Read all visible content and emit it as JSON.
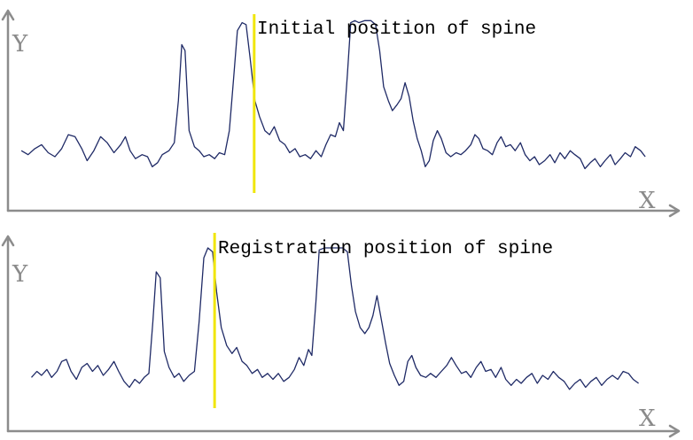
{
  "chart_data": [
    {
      "type": "line",
      "title": "",
      "xlabel": "X",
      "ylabel": "Y",
      "grid": false,
      "xlim": [
        0,
        100
      ],
      "ylim": [
        0,
        1
      ],
      "annotation": {
        "text": "Initial position of spine",
        "marker_x": 36.7,
        "color": "#f0e60a"
      },
      "series": [
        {
          "color": "#1f2a66",
          "points": [
            [
              2.0,
              0.3
            ],
            [
              3.0,
              0.28
            ],
            [
              4.0,
              0.31
            ],
            [
              5.0,
              0.33
            ],
            [
              6.0,
              0.29
            ],
            [
              7.0,
              0.27
            ],
            [
              8.0,
              0.31
            ],
            [
              9.0,
              0.38
            ],
            [
              10.0,
              0.37
            ],
            [
              11.0,
              0.31
            ],
            [
              11.8,
              0.25
            ],
            [
              12.8,
              0.3
            ],
            [
              13.8,
              0.37
            ],
            [
              14.8,
              0.34
            ],
            [
              15.8,
              0.29
            ],
            [
              16.8,
              0.33
            ],
            [
              17.5,
              0.37
            ],
            [
              18.2,
              0.3
            ],
            [
              19.0,
              0.26
            ],
            [
              20.0,
              0.28
            ],
            [
              20.8,
              0.27
            ],
            [
              21.5,
              0.22
            ],
            [
              22.3,
              0.24
            ],
            [
              23.0,
              0.28
            ],
            [
              24.0,
              0.3
            ],
            [
              24.8,
              0.34
            ],
            [
              25.4,
              0.55
            ],
            [
              25.9,
              0.83
            ],
            [
              26.4,
              0.8
            ],
            [
              27.0,
              0.4
            ],
            [
              27.8,
              0.32
            ],
            [
              28.5,
              0.3
            ],
            [
              29.2,
              0.27
            ],
            [
              30.0,
              0.28
            ],
            [
              30.8,
              0.26
            ],
            [
              31.5,
              0.29
            ],
            [
              32.3,
              0.28
            ],
            [
              33.0,
              0.4
            ],
            [
              33.6,
              0.65
            ],
            [
              34.2,
              0.9
            ],
            [
              34.9,
              0.94
            ],
            [
              35.5,
              0.93
            ],
            [
              36.1,
              0.76
            ],
            [
              36.8,
              0.55
            ],
            [
              37.5,
              0.47
            ],
            [
              38.3,
              0.4
            ],
            [
              39.0,
              0.38
            ],
            [
              39.7,
              0.42
            ],
            [
              40.5,
              0.35
            ],
            [
              41.3,
              0.33
            ],
            [
              42.0,
              0.29
            ],
            [
              42.8,
              0.31
            ],
            [
              43.5,
              0.27
            ],
            [
              44.3,
              0.28
            ],
            [
              45.1,
              0.26
            ],
            [
              45.9,
              0.3
            ],
            [
              46.7,
              0.27
            ],
            [
              47.4,
              0.33
            ],
            [
              48.1,
              0.38
            ],
            [
              48.8,
              0.37
            ],
            [
              49.4,
              0.44
            ],
            [
              50.0,
              0.4
            ],
            [
              50.6,
              0.68
            ],
            [
              51.1,
              0.94
            ],
            [
              51.7,
              0.95
            ],
            [
              52.3,
              0.94
            ],
            [
              53.2,
              0.95
            ],
            [
              54.1,
              0.95
            ],
            [
              54.8,
              0.93
            ],
            [
              55.4,
              0.8
            ],
            [
              56.0,
              0.62
            ],
            [
              56.7,
              0.55
            ],
            [
              57.3,
              0.5
            ],
            [
              58.0,
              0.53
            ],
            [
              58.6,
              0.56
            ],
            [
              59.2,
              0.64
            ],
            [
              59.8,
              0.57
            ],
            [
              60.4,
              0.45
            ],
            [
              61.0,
              0.36
            ],
            [
              61.6,
              0.3
            ],
            [
              62.2,
              0.22
            ],
            [
              62.8,
              0.25
            ],
            [
              63.4,
              0.35
            ],
            [
              64.0,
              0.4
            ],
            [
              64.6,
              0.36
            ],
            [
              65.3,
              0.29
            ],
            [
              66.0,
              0.27
            ],
            [
              66.8,
              0.29
            ],
            [
              67.5,
              0.28
            ],
            [
              68.2,
              0.3
            ],
            [
              69.0,
              0.33
            ],
            [
              69.6,
              0.38
            ],
            [
              70.2,
              0.36
            ],
            [
              70.8,
              0.31
            ],
            [
              71.5,
              0.3
            ],
            [
              72.2,
              0.28
            ],
            [
              72.9,
              0.34
            ],
            [
              73.5,
              0.37
            ],
            [
              74.2,
              0.32
            ],
            [
              74.9,
              0.33
            ],
            [
              75.6,
              0.3
            ],
            [
              76.4,
              0.34
            ],
            [
              77.1,
              0.28
            ],
            [
              77.8,
              0.25
            ],
            [
              78.5,
              0.27
            ],
            [
              79.2,
              0.23
            ],
            [
              80.0,
              0.25
            ],
            [
              80.8,
              0.28
            ],
            [
              81.5,
              0.24
            ],
            [
              82.3,
              0.29
            ],
            [
              83.0,
              0.26
            ],
            [
              83.8,
              0.3
            ],
            [
              84.5,
              0.28
            ],
            [
              85.3,
              0.26
            ],
            [
              86.0,
              0.21
            ],
            [
              86.8,
              0.24
            ],
            [
              87.5,
              0.26
            ],
            [
              88.3,
              0.22
            ],
            [
              89.0,
              0.25
            ],
            [
              89.8,
              0.28
            ],
            [
              90.5,
              0.23
            ],
            [
              91.3,
              0.26
            ],
            [
              92.0,
              0.29
            ],
            [
              92.8,
              0.27
            ],
            [
              93.5,
              0.32
            ],
            [
              94.3,
              0.3
            ],
            [
              95.0,
              0.27
            ]
          ]
        }
      ]
    },
    {
      "type": "line",
      "title": "",
      "xlabel": "X",
      "ylabel": "Y",
      "grid": false,
      "xlim": [
        0,
        100
      ],
      "ylim": [
        0,
        1
      ],
      "annotation": {
        "text": "Registration position of spine",
        "marker_x": 30.8,
        "color": "#f0e60a"
      },
      "series": [
        {
          "color": "#1f2a66",
          "points": [
            [
              3.5,
              0.27
            ],
            [
              4.3,
              0.3
            ],
            [
              5.0,
              0.28
            ],
            [
              5.8,
              0.31
            ],
            [
              6.5,
              0.27
            ],
            [
              7.3,
              0.3
            ],
            [
              8.0,
              0.35
            ],
            [
              8.7,
              0.36
            ],
            [
              9.4,
              0.3
            ],
            [
              10.2,
              0.26
            ],
            [
              11.0,
              0.32
            ],
            [
              11.8,
              0.34
            ],
            [
              12.6,
              0.3
            ],
            [
              13.4,
              0.33
            ],
            [
              14.2,
              0.28
            ],
            [
              15.0,
              0.31
            ],
            [
              15.8,
              0.35
            ],
            [
              16.5,
              0.3
            ],
            [
              17.3,
              0.25
            ],
            [
              18.1,
              0.22
            ],
            [
              18.9,
              0.26
            ],
            [
              19.6,
              0.24
            ],
            [
              20.3,
              0.27
            ],
            [
              21.0,
              0.29
            ],
            [
              21.6,
              0.55
            ],
            [
              22.1,
              0.8
            ],
            [
              22.7,
              0.77
            ],
            [
              23.3,
              0.4
            ],
            [
              24.0,
              0.32
            ],
            [
              24.8,
              0.27
            ],
            [
              25.5,
              0.29
            ],
            [
              26.2,
              0.25
            ],
            [
              27.0,
              0.28
            ],
            [
              27.8,
              0.3
            ],
            [
              28.5,
              0.55
            ],
            [
              29.2,
              0.87
            ],
            [
              29.8,
              0.92
            ],
            [
              30.5,
              0.9
            ],
            [
              31.1,
              0.7
            ],
            [
              31.8,
              0.52
            ],
            [
              32.6,
              0.43
            ],
            [
              33.4,
              0.39
            ],
            [
              34.1,
              0.42
            ],
            [
              34.9,
              0.35
            ],
            [
              35.6,
              0.33
            ],
            [
              36.4,
              0.29
            ],
            [
              37.2,
              0.31
            ],
            [
              37.9,
              0.27
            ],
            [
              38.7,
              0.29
            ],
            [
              39.5,
              0.26
            ],
            [
              40.3,
              0.29
            ],
            [
              41.1,
              0.25
            ],
            [
              41.9,
              0.27
            ],
            [
              42.7,
              0.31
            ],
            [
              43.4,
              0.37
            ],
            [
              44.1,
              0.33
            ],
            [
              44.8,
              0.41
            ],
            [
              45.3,
              0.38
            ],
            [
              45.9,
              0.65
            ],
            [
              46.4,
              0.91
            ],
            [
              47.2,
              0.92
            ],
            [
              48.1,
              0.92
            ],
            [
              49.0,
              0.92
            ],
            [
              49.9,
              0.92
            ],
            [
              50.6,
              0.9
            ],
            [
              51.2,
              0.73
            ],
            [
              51.8,
              0.6
            ],
            [
              52.5,
              0.52
            ],
            [
              53.2,
              0.49
            ],
            [
              53.8,
              0.52
            ],
            [
              54.4,
              0.58
            ],
            [
              55.0,
              0.68
            ],
            [
              55.6,
              0.57
            ],
            [
              56.3,
              0.44
            ],
            [
              56.9,
              0.34
            ],
            [
              57.6,
              0.28
            ],
            [
              58.3,
              0.23
            ],
            [
              59.0,
              0.25
            ],
            [
              59.6,
              0.35
            ],
            [
              60.2,
              0.38
            ],
            [
              60.8,
              0.32
            ],
            [
              61.5,
              0.28
            ],
            [
              62.3,
              0.27
            ],
            [
              63.0,
              0.29
            ],
            [
              63.8,
              0.27
            ],
            [
              64.6,
              0.3
            ],
            [
              65.4,
              0.33
            ],
            [
              66.1,
              0.37
            ],
            [
              66.8,
              0.33
            ],
            [
              67.6,
              0.29
            ],
            [
              68.3,
              0.3
            ],
            [
              69.0,
              0.27
            ],
            [
              69.8,
              0.32
            ],
            [
              70.5,
              0.35
            ],
            [
              71.2,
              0.3
            ],
            [
              72.0,
              0.31
            ],
            [
              72.7,
              0.27
            ],
            [
              73.5,
              0.32
            ],
            [
              74.2,
              0.26
            ],
            [
              75.0,
              0.23
            ],
            [
              75.8,
              0.26
            ],
            [
              76.5,
              0.24
            ],
            [
              77.3,
              0.27
            ],
            [
              78.1,
              0.29
            ],
            [
              78.9,
              0.24
            ],
            [
              79.7,
              0.28
            ],
            [
              80.5,
              0.26
            ],
            [
              81.3,
              0.3
            ],
            [
              82.1,
              0.27
            ],
            [
              82.9,
              0.25
            ],
            [
              83.7,
              0.21
            ],
            [
              84.5,
              0.24
            ],
            [
              85.3,
              0.26
            ],
            [
              86.1,
              0.22
            ],
            [
              86.9,
              0.25
            ],
            [
              87.7,
              0.27
            ],
            [
              88.5,
              0.23
            ],
            [
              89.3,
              0.26
            ],
            [
              90.1,
              0.28
            ],
            [
              90.9,
              0.26
            ],
            [
              91.7,
              0.3
            ],
            [
              92.5,
              0.29
            ],
            [
              93.2,
              0.26
            ],
            [
              94.0,
              0.24
            ]
          ]
        }
      ]
    }
  ]
}
